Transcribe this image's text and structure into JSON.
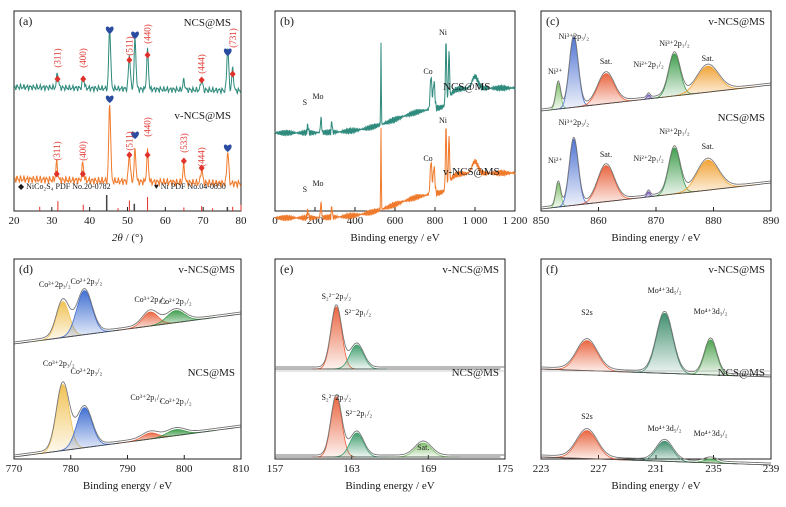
{
  "chart_data": [
    {
      "type": "line",
      "panel": "(a)",
      "xlabel": "2θ / (°)",
      "xlim": [
        20,
        80
      ],
      "xticks": [
        "20",
        "30",
        "40",
        "50",
        "60",
        "70",
        "80"
      ],
      "series": [
        {
          "name": "NCS@MS",
          "color": "#2e8a7c",
          "peaks": [
            [
              31.5,
              0.25
            ],
            [
              38.3,
              0.2
            ],
            [
              45.3,
              1.0
            ],
            [
              50.5,
              0.55
            ],
            [
              52.0,
              0.8
            ],
            [
              55.3,
              0.62
            ],
            [
              64.9,
              0.15
            ],
            [
              69.6,
              0.18
            ],
            [
              76.5,
              0.7
            ],
            [
              77.8,
              0.35
            ]
          ]
        },
        {
          "name": "v-NCS@MS",
          "color": "#f07a2b",
          "peaks": [
            [
              31.3,
              0.22
            ],
            [
              38.2,
              0.22
            ],
            [
              45.3,
              1.0
            ],
            [
              50.5,
              0.35
            ],
            [
              52.0,
              0.4
            ],
            [
              55.3,
              0.38
            ],
            [
              64.9,
              0.22
            ],
            [
              69.6,
              0.18
            ],
            [
              76.5,
              0.42
            ]
          ]
        }
      ],
      "annotations": [
        {
          "text": "(311)",
          "series": "NCS@MS",
          "x": 31.5
        },
        {
          "text": "(400)",
          "series": "NCS@MS",
          "x": 38.3
        },
        {
          "text": "(511)",
          "series": "NCS@MS",
          "x": 50.5
        },
        {
          "text": "(440)",
          "series": "NCS@MS",
          "x": 55.3
        },
        {
          "text": "(444)",
          "series": "NCS@MS",
          "x": 69.6
        },
        {
          "text": "(731)",
          "series": "NCS@MS",
          "x": 77.9
        },
        {
          "text": "(311)",
          "series": "v-NCS@MS",
          "x": 31.3
        },
        {
          "text": "(400)",
          "series": "v-NCS@MS",
          "x": 38.2
        },
        {
          "text": "(511)",
          "series": "v-NCS@MS",
          "x": 50.5
        },
        {
          "text": "(440)",
          "series": "v-NCS@MS",
          "x": 55.3
        },
        {
          "text": "(533)",
          "series": "v-NCS@MS",
          "x": 64.9
        },
        {
          "text": "(444)",
          "series": "v-NCS@MS",
          "x": 69.6
        }
      ],
      "legend": [
        {
          "text": "◆ NiCo₂S₄ PDF No.20-0782",
          "color": "#e0312a"
        },
        {
          "text": "♥ Ni PDF No.04-0850",
          "color": "#2a4ca0"
        }
      ],
      "reference_lines": {
        "NiCo2S4": {
          "color": "#e0312a",
          "x": [
            26.8,
            31.6,
            38.3,
            47.5,
            50.5,
            55.3,
            64.9,
            69.6,
            72.5,
            77.8,
            80.0
          ],
          "h": [
            0.3,
            0.7,
            0.45,
            0.2,
            0.75,
            1.0,
            0.25,
            0.35,
            0.2,
            0.3,
            0.45
          ]
        },
        "Ni": {
          "color": "#444444",
          "x": [
            44.5,
            51.8,
            76.4
          ],
          "h": [
            1.0,
            0.45,
            0.25
          ]
        }
      }
    },
    {
      "type": "line",
      "panel": "(b)",
      "xlabel": "Binding energy / eV",
      "xlim": [
        0,
        1200
      ],
      "xticks": [
        "0",
        "200",
        "400",
        "600",
        "800",
        "1 000",
        "1 200"
      ],
      "series": [
        {
          "name": "NCS@MS",
          "color": "#2e8a7c"
        },
        {
          "name": "v-NCS@MS",
          "color": "#f07a2b"
        }
      ],
      "annotations": [
        {
          "text": "S",
          "x": 164
        },
        {
          "text": "Mo",
          "x": 230
        },
        {
          "text": "Co",
          "x": 780
        },
        {
          "text": "Ni",
          "x": 855
        }
      ]
    },
    {
      "type": "area",
      "panel": "(c)",
      "xlabel": "Binding energy / eV",
      "xlim": [
        850,
        890
      ],
      "xticks": [
        "850",
        "860",
        "870",
        "880",
        "890"
      ],
      "series": [
        {
          "name": "v-NCS@MS"
        },
        {
          "name": "NCS@MS"
        }
      ],
      "components": [
        {
          "label": "Ni²⁺",
          "center": 853.0,
          "color": "#7fbf6a"
        },
        {
          "label": "Ni³⁺2p₃/₂",
          "center": 855.7,
          "color": "#4a6fd0"
        },
        {
          "label": "Sat.",
          "center": 861.3,
          "color": "#e8603a"
        },
        {
          "label": "Ni²⁺2p₁/₂",
          "center": 868.7,
          "color": "#6a4fb0"
        },
        {
          "label": "Ni³⁺2p₁/₂",
          "center": 873.2,
          "color": "#3a9a48"
        },
        {
          "label": "Sat.",
          "center": 879.0,
          "color": "#f0a030"
        }
      ]
    },
    {
      "type": "area",
      "panel": "(d)",
      "xlabel": "Binding energy / eV",
      "xlim": [
        770,
        810
      ],
      "xticks": [
        "770",
        "780",
        "790",
        "800",
        "810"
      ],
      "series": [
        {
          "name": "v-NCS@MS"
        },
        {
          "name": "NCS@MS"
        }
      ],
      "components": [
        {
          "label": "Co³⁺2p₃/₂",
          "center": 778.6,
          "color": "#f0c050"
        },
        {
          "label": "Co²⁺2p₃/₂",
          "center": 782.4,
          "color": "#3a6ad0"
        },
        {
          "label": "Co³⁺2p₁/₂",
          "center": 794.0,
          "color": "#e8603a"
        },
        {
          "label": "Co²⁺2p₁/₂",
          "center": 798.5,
          "color": "#3a9a48"
        }
      ]
    },
    {
      "type": "area",
      "panel": "(e)",
      "xlabel": "Binding energy / eV",
      "xlim": [
        157,
        175
      ],
      "xticks": [
        "157",
        "163",
        "169",
        "175"
      ],
      "series": [
        {
          "name": "v-NCS@MS"
        },
        {
          "name": "NCS@MS"
        }
      ],
      "components": [
        {
          "label": "S₂²⁻2p₃/₂",
          "center": 161.8,
          "color": "#e8603a"
        },
        {
          "label": "S²⁻2p₁/₂",
          "center": 163.4,
          "color": "#3a9a6a"
        },
        {
          "label": "Sat.",
          "center": 168.6,
          "color": "#7fbf6a"
        }
      ]
    },
    {
      "type": "area",
      "panel": "(f)",
      "xlabel": "Binding energy / eV",
      "xlim": [
        223,
        239
      ],
      "xticks": [
        "223",
        "227",
        "231",
        "235",
        "239"
      ],
      "series": [
        {
          "name": "v-NCS@MS"
        },
        {
          "name": "NCS@MS"
        }
      ],
      "components": [
        {
          "label": "S2s",
          "center": 226.2,
          "color": "#e8603a"
        },
        {
          "label": "Mo⁴⁺3d₅/₂",
          "center": 231.6,
          "color": "#3a8a6a"
        },
        {
          "label": "Mo⁴⁺3d₃/₂",
          "center": 234.8,
          "color": "#4aa04a"
        }
      ]
    }
  ]
}
